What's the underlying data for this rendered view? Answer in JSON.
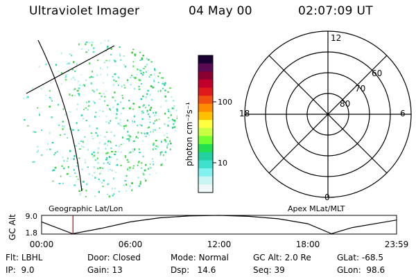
{
  "header": {
    "instrument": "Ultraviolet Imager",
    "date": "04 May 00",
    "time": "02:07:09 UT"
  },
  "colorbar": {
    "unit_label": "photon cm⁻²s⁻¹",
    "ticks": [
      {
        "value": 100,
        "label": "100"
      },
      {
        "value": 10,
        "label": "10"
      }
    ],
    "colors": [
      "#1a0033",
      "#5a0a55",
      "#8a0030",
      "#c0002a",
      "#e01a1a",
      "#f05010",
      "#ff8c00",
      "#ffc000",
      "#ffff40",
      "#c8ff40",
      "#70ff30",
      "#20e050",
      "#20d0a0",
      "#40e0d0",
      "#80f0f0",
      "#c8f4f4",
      "#eef8f8"
    ]
  },
  "left_map": {
    "label": "Geographic Lat/Lon"
  },
  "polar_plot": {
    "label": "Apex MLat/MLT",
    "mlt_labels": {
      "top": "12",
      "left": "18",
      "right": "6",
      "bottom": "0"
    },
    "lat_labels": [
      "60",
      "70",
      "80"
    ]
  },
  "altitude_plot": {
    "ylabel": "GC Alt",
    "yticks": [
      "9.0",
      "1.8"
    ],
    "xticks": [
      "00:00",
      "06:00",
      "12:00",
      "18:00",
      "23:59"
    ],
    "marker_time_hours": 2.12,
    "marker_color": "#cc0000"
  },
  "info": {
    "flt": {
      "label": "Flt:",
      "value": "LBHL"
    },
    "ip": {
      "label": "IP:",
      "value": "9.0"
    },
    "door": {
      "label": "Door:",
      "value": "Closed"
    },
    "gain": {
      "label": "Gain:",
      "value": "13"
    },
    "mode": {
      "label": "Mode:",
      "value": "Normal"
    },
    "dsp": {
      "label": "Dsp:",
      "value": "14.6"
    },
    "gcalt": {
      "label": "GC Alt:",
      "value": "2.0 Re"
    },
    "seq": {
      "label": "Seq:",
      "value": "39"
    },
    "glat": {
      "label": "GLat:",
      "value": "-68.5"
    },
    "glon": {
      "label": "GLon:",
      "value": "98.6"
    }
  }
}
